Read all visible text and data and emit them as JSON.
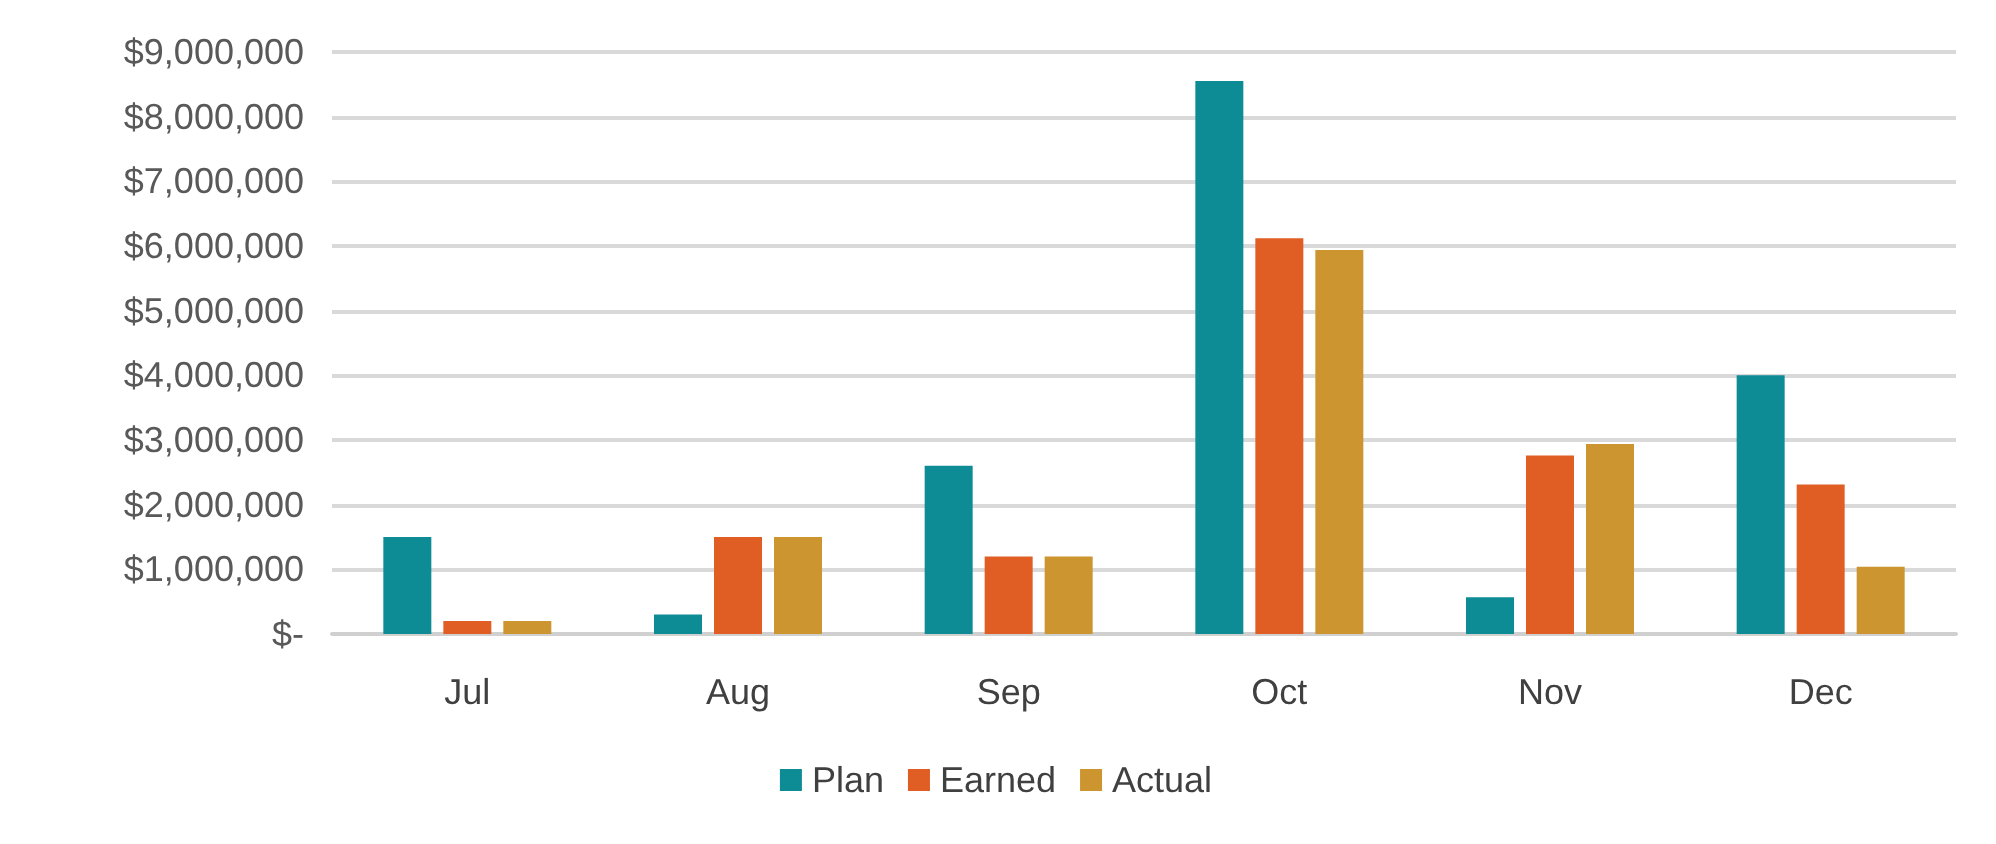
{
  "chart_data": {
    "type": "bar",
    "categories": [
      "Jul",
      "Aug",
      "Sep",
      "Oct",
      "Nov",
      "Dec"
    ],
    "series": [
      {
        "name": "Plan",
        "color": "#0e8c96",
        "values": [
          1500000,
          300000,
          2600000,
          8550000,
          570000,
          4000000
        ]
      },
      {
        "name": "Earned",
        "color": "#e05d24",
        "values": [
          200000,
          1500000,
          1200000,
          6120000,
          2760000,
          2310000
        ]
      },
      {
        "name": "Actual",
        "color": "#cc9530",
        "values": [
          200000,
          1500000,
          1200000,
          5940000,
          2940000,
          1040000
        ]
      }
    ],
    "ylim": [
      0,
      9000000
    ],
    "yticks": [
      {
        "value": 0,
        "label": "$-"
      },
      {
        "value": 1000000,
        "label": "$1,000,000"
      },
      {
        "value": 2000000,
        "label": "$2,000,000"
      },
      {
        "value": 3000000,
        "label": "$3,000,000"
      },
      {
        "value": 4000000,
        "label": "$4,000,000"
      },
      {
        "value": 5000000,
        "label": "$5,000,000"
      },
      {
        "value": 6000000,
        "label": "$6,000,000"
      },
      {
        "value": 7000000,
        "label": "$7,000,000"
      },
      {
        "value": 8000000,
        "label": "$8,000,000"
      },
      {
        "value": 9000000,
        "label": "$9,000,000"
      }
    ],
    "grid": true,
    "legend": "bottom"
  }
}
